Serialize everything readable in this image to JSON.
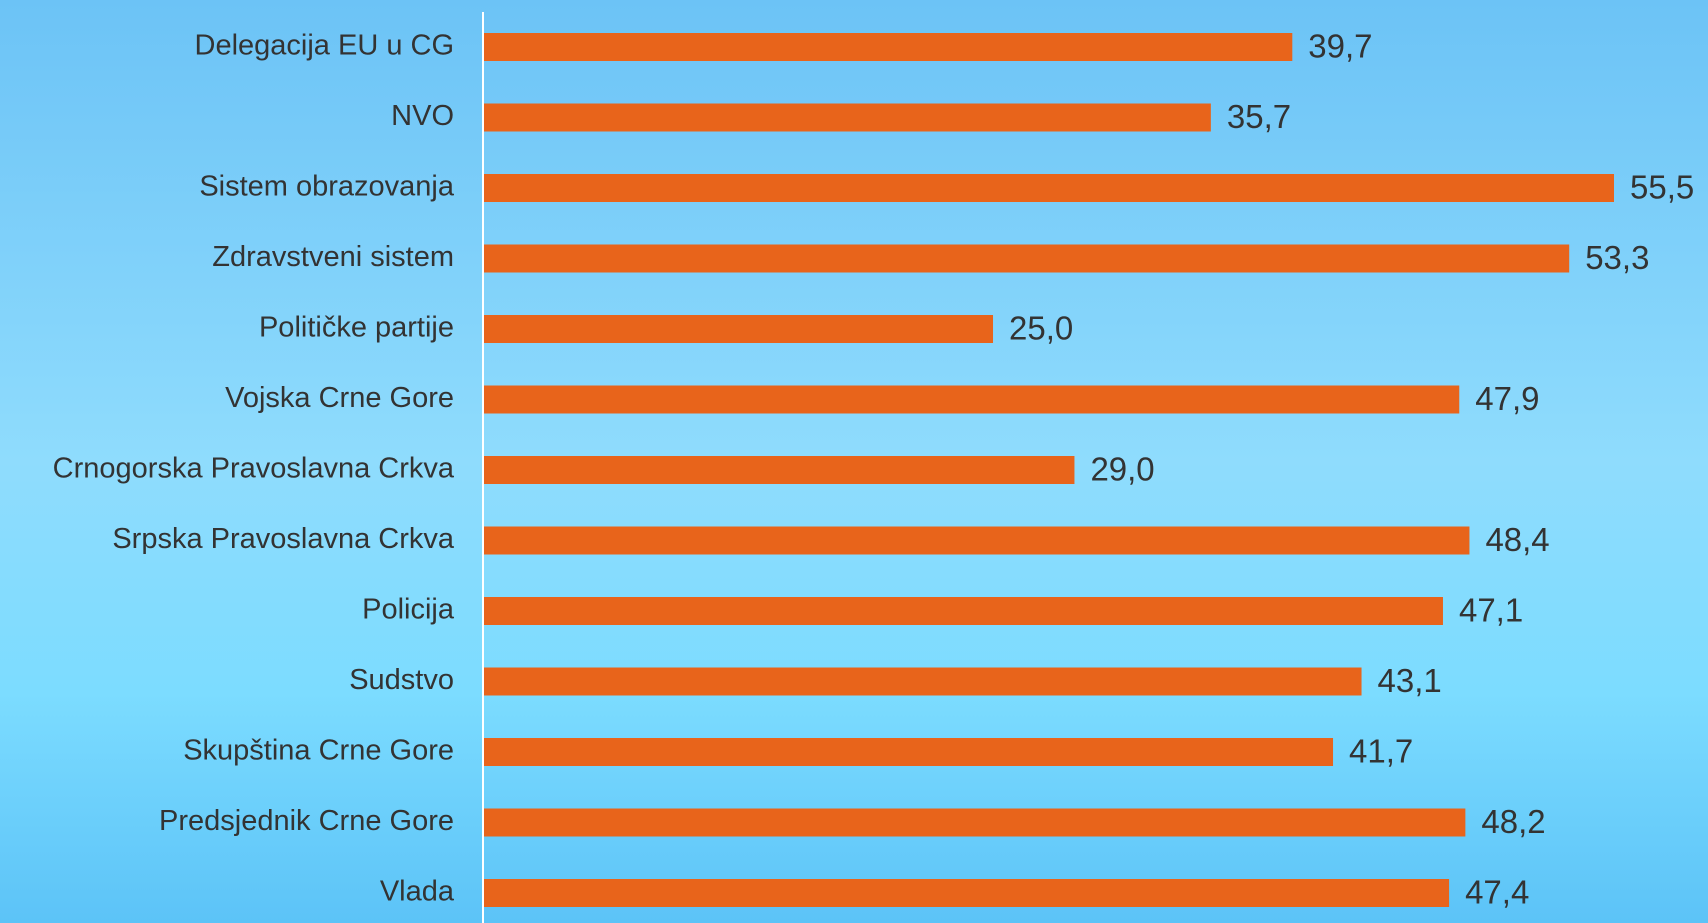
{
  "chart_data": {
    "type": "barh",
    "categories": [
      "Delegacija EU u CG",
      "NVO",
      "Sistem obrazovanja",
      "Zdravstveni sistem",
      "Političke partije",
      "Vojska Crne Gore",
      "Crnogorska Pravoslavna Crkva",
      "Srpska Pravoslavna Crkva",
      "Policija",
      "Sudstvo",
      "Skupština Crne Gore",
      "Predsjednik Crne Gore",
      "Vlada"
    ],
    "values": [
      39.7,
      35.7,
      55.5,
      53.3,
      25.0,
      47.9,
      29.0,
      48.4,
      47.1,
      43.1,
      41.7,
      48.2,
      47.4
    ],
    "value_labels": [
      "39,7",
      "35,7",
      "55,5",
      "53,3",
      "25,0",
      "47,9",
      "29,0",
      "48,4",
      "47,1",
      "43,1",
      "41,7",
      "48,2",
      "47,4"
    ],
    "color": "#e8641b"
  }
}
